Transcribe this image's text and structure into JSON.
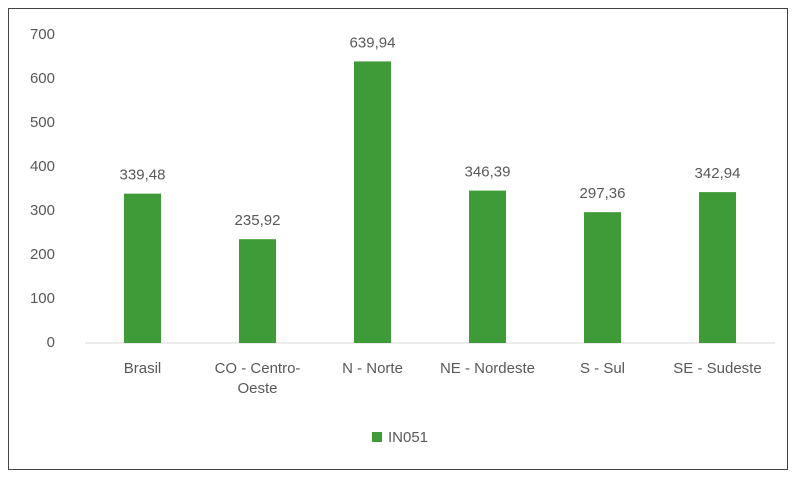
{
  "chart_data": {
    "type": "bar",
    "categories": [
      "Brasil",
      "CO - Centro-Oeste",
      "N - Norte",
      "NE - Nordeste",
      "S - Sul",
      "SE - Sudeste"
    ],
    "series": [
      {
        "name": "IN051",
        "color": "#3f9b37",
        "values": [
          339.48,
          235.92,
          639.94,
          346.39,
          297.36,
          342.94
        ],
        "value_labels": [
          "339,48",
          "235,92",
          "639,94",
          "346,39",
          "297,36",
          "342,94"
        ]
      }
    ],
    "ylim": [
      0,
      700
    ],
    "yticks": [
      0,
      100,
      200,
      300,
      400,
      500,
      600,
      700
    ],
    "grid": false,
    "legend": "bottom"
  }
}
